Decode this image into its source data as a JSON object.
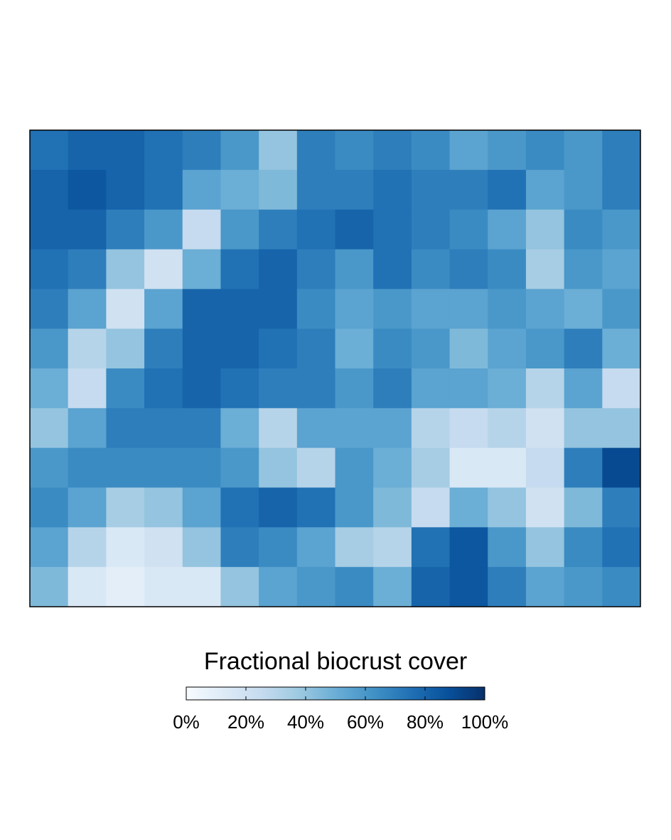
{
  "chart_data": {
    "type": "heatmap",
    "z": [
      [
        75,
        80,
        80,
        75,
        70,
        60,
        40,
        70,
        65,
        70,
        65,
        55,
        60,
        65,
        60,
        70
      ],
      [
        80,
        85,
        80,
        75,
        55,
        50,
        45,
        70,
        70,
        75,
        70,
        70,
        75,
        55,
        60,
        70
      ],
      [
        80,
        80,
        70,
        60,
        25,
        60,
        70,
        75,
        80,
        75,
        70,
        65,
        55,
        40,
        65,
        60
      ],
      [
        75,
        70,
        40,
        20,
        50,
        75,
        80,
        70,
        60,
        75,
        65,
        70,
        65,
        35,
        60,
        55
      ],
      [
        70,
        55,
        20,
        55,
        80,
        80,
        80,
        65,
        55,
        60,
        55,
        55,
        60,
        55,
        50,
        60
      ],
      [
        60,
        30,
        40,
        70,
        80,
        80,
        75,
        70,
        50,
        65,
        60,
        45,
        55,
        60,
        70,
        50
      ],
      [
        50,
        25,
        65,
        75,
        80,
        75,
        70,
        70,
        60,
        70,
        55,
        55,
        50,
        30,
        55,
        25
      ],
      [
        40,
        55,
        70,
        70,
        70,
        50,
        30,
        55,
        55,
        55,
        30,
        25,
        30,
        20,
        40,
        40
      ],
      [
        60,
        65,
        65,
        65,
        65,
        60,
        40,
        30,
        60,
        50,
        35,
        15,
        15,
        25,
        70,
        90
      ],
      [
        65,
        55,
        35,
        40,
        55,
        75,
        80,
        75,
        60,
        45,
        25,
        50,
        40,
        20,
        45,
        70
      ],
      [
        55,
        30,
        15,
        20,
        40,
        70,
        65,
        55,
        35,
        30,
        75,
        85,
        60,
        40,
        65,
        75
      ],
      [
        45,
        15,
        10,
        15,
        15,
        40,
        55,
        60,
        65,
        50,
        80,
        85,
        70,
        55,
        60,
        65
      ]
    ],
    "colorbar_title": "Fractional biocrust cover",
    "zlim": [
      0,
      100
    ],
    "zticks": [
      {
        "value": 0,
        "label": "0%"
      },
      {
        "value": 20,
        "label": "20%"
      },
      {
        "value": 40,
        "label": "40%"
      },
      {
        "value": 60,
        "label": "60%"
      },
      {
        "value": 80,
        "label": "80%"
      },
      {
        "value": 100,
        "label": "100%"
      }
    ],
    "colors": [
      "#f7fbff",
      "#deebf7",
      "#c6dbef",
      "#9ecae1",
      "#6baed6",
      "#4292c6",
      "#2171b5",
      "#08519c",
      "#08306b"
    ]
  }
}
